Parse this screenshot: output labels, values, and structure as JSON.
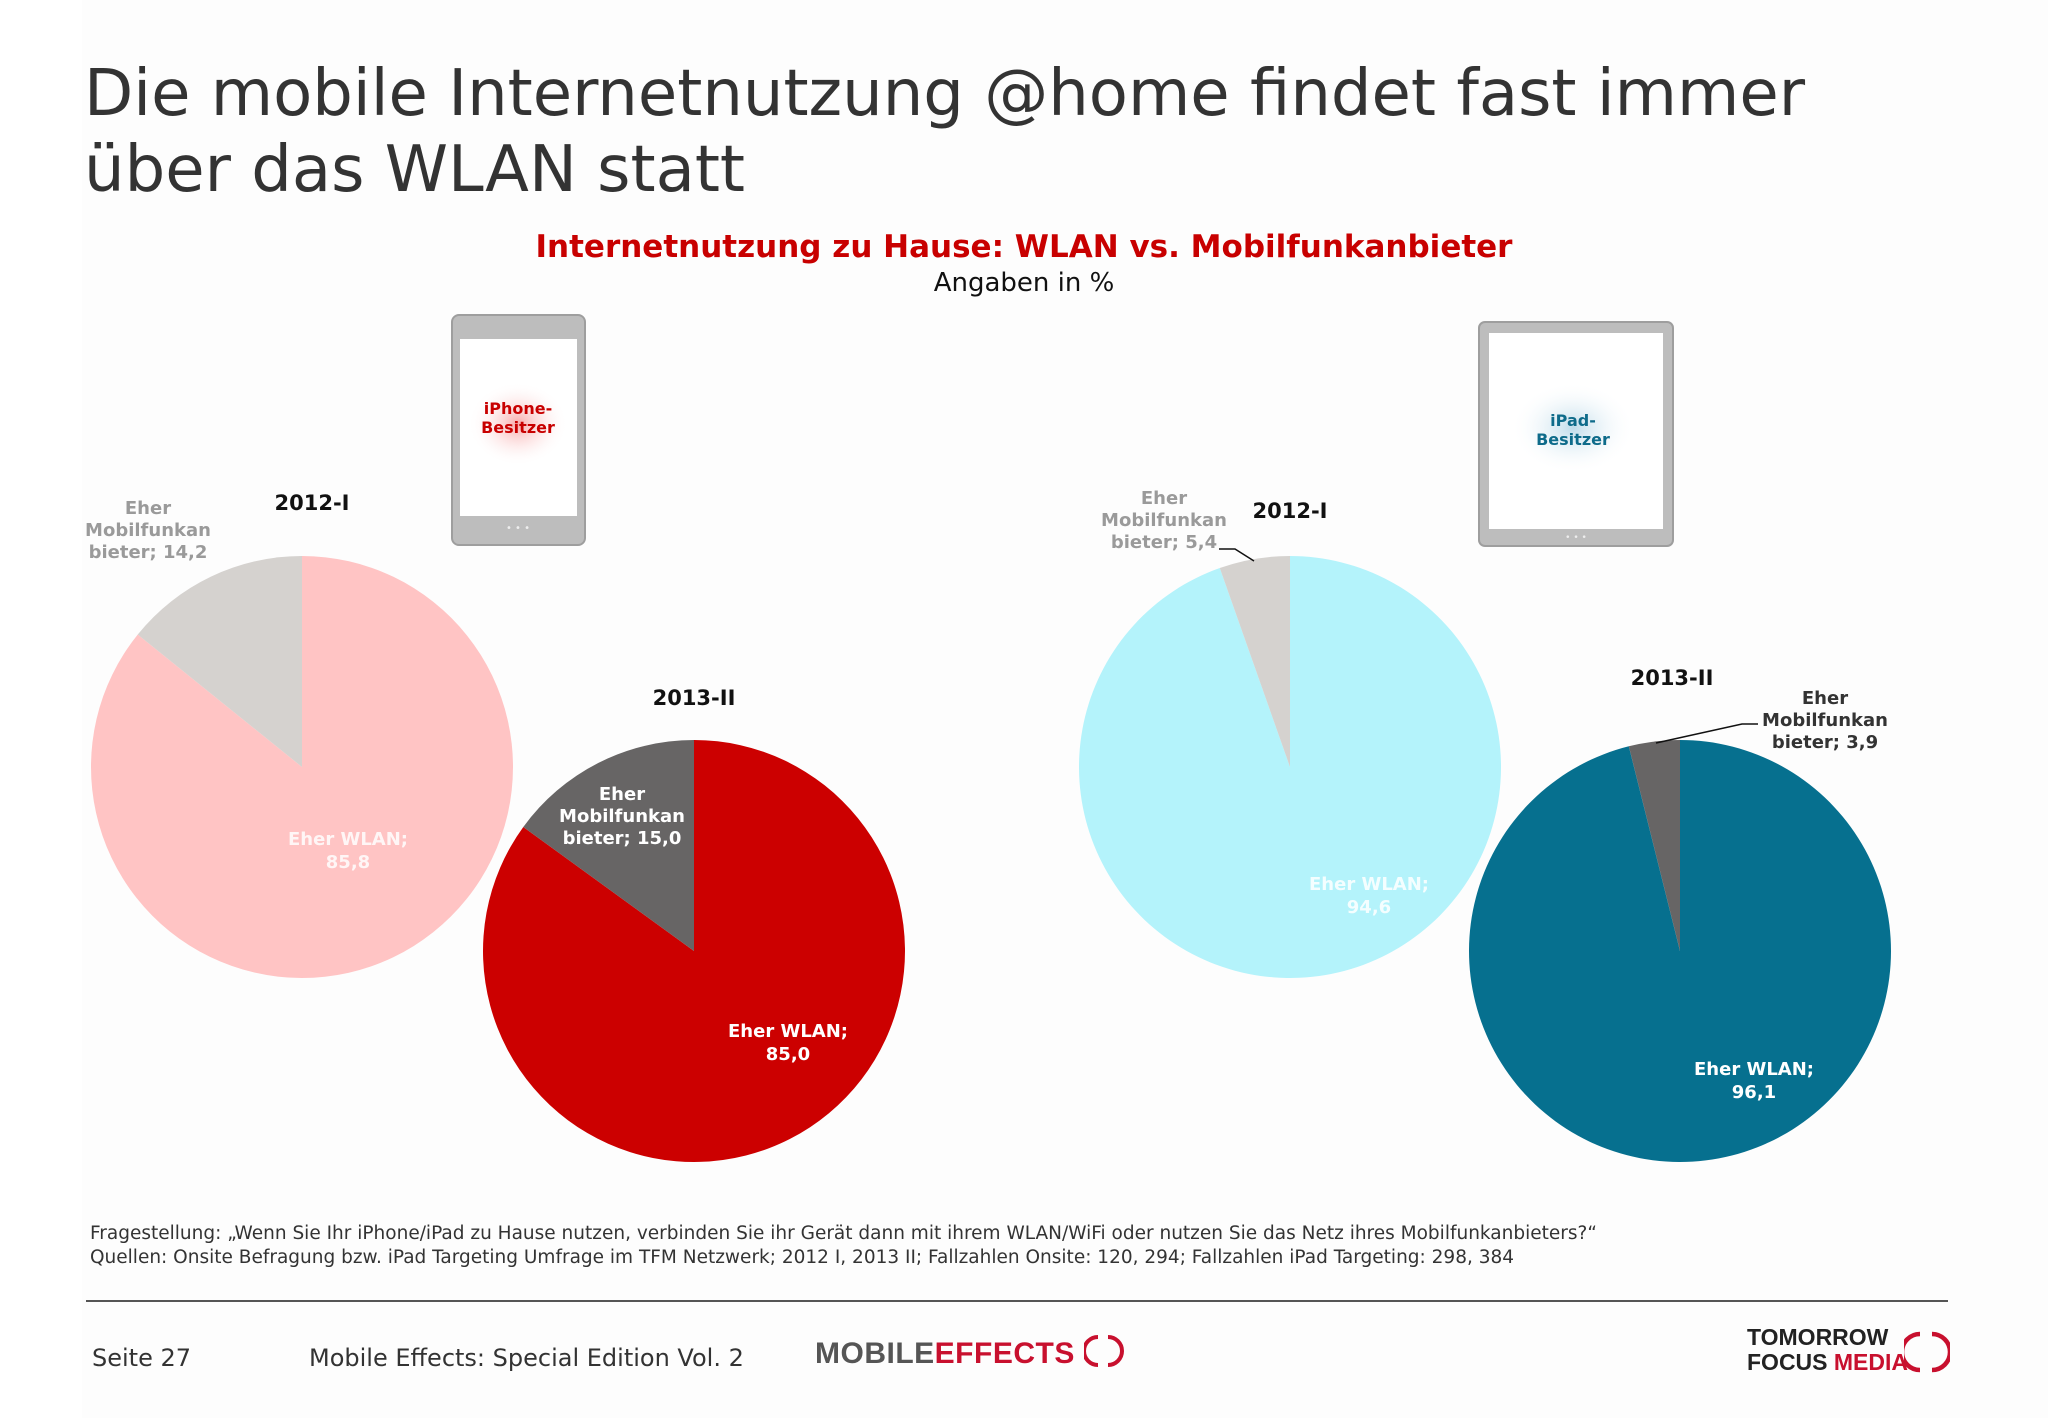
{
  "slide": {
    "title_line1": "Die mobile Internetnutzung @home findet fast immer",
    "title_line2": "über das WLAN statt"
  },
  "chart_header": {
    "title": "Internetnutzung zu Hause: WLAN vs. Mobilfunkanbieter",
    "subtitle": "Angaben in %"
  },
  "devices": {
    "iphone_label": [
      "iPhone-",
      "Besitzer"
    ],
    "ipad_label": [
      "iPad-",
      "Besitzer"
    ]
  },
  "colors": {
    "iphone_2012_wlan": "#ffc4c4",
    "iphone_2012_mobil": "#d5d2cf",
    "iphone_2013_wlan": "#cc0000",
    "iphone_2013_mobil": "#676565",
    "ipad_2012_wlan": "#b4f3fb",
    "ipad_2012_mobil": "#d5d2cf",
    "ipad_2013_wlan": "#06708f",
    "ipad_2013_mobil": "#676565",
    "iphone_label": "#c80000",
    "ipad_label": "#0e6b8a"
  },
  "chart_data": [
    {
      "type": "pie",
      "device": "iPhone-Besitzer",
      "title": "2012-I",
      "slices": [
        {
          "label": [
            "Eher WLAN;",
            "85,8"
          ],
          "value": 85.8
        },
        {
          "label": [
            "Eher",
            "Mobilfunkan",
            "bieter; 14,2"
          ],
          "value": 14.2
        }
      ]
    },
    {
      "type": "pie",
      "device": "iPhone-Besitzer",
      "title": "2013-II",
      "slices": [
        {
          "label": [
            "Eher WLAN;",
            "85,0"
          ],
          "value": 85.0
        },
        {
          "label": [
            "Eher",
            "Mobilfunkan",
            "bieter; 15,0"
          ],
          "value": 15.0
        }
      ]
    },
    {
      "type": "pie",
      "device": "iPad-Besitzer",
      "title": "2012-I",
      "slices": [
        {
          "label": [
            "Eher WLAN;",
            "94,6"
          ],
          "value": 94.6
        },
        {
          "label": [
            "Eher",
            "Mobilfunkan",
            "bieter; 5,4"
          ],
          "value": 5.4
        }
      ]
    },
    {
      "type": "pie",
      "device": "iPad-Besitzer",
      "title": "2013-II",
      "slices": [
        {
          "label": [
            "Eher WLAN;",
            "96,1"
          ],
          "value": 96.1
        },
        {
          "label": [
            "Eher",
            "Mobilfunkan",
            "bieter; 3,9"
          ],
          "value": 3.9
        }
      ]
    }
  ],
  "notes": {
    "question": "Fragestellung: „Wenn Sie Ihr iPhone/iPad zu Hause nutzen, verbinden Sie ihr Gerät dann mit ihrem WLAN/WiFi oder nutzen Sie das Netz ihres Mobilfunkanbieters?“",
    "sources": "Quellen: Onsite Befragung bzw. iPad Targeting Umfrage im TFM Netzwerk; 2012 I, 2013 II; Fallzahlen Onsite: 120, 294; Fallzahlen iPad Targeting: 298, 384"
  },
  "footer": {
    "page": "Seite 27",
    "publication": "Mobile Effects: Special Edition Vol. 2",
    "logo_left_a": "MOBILE",
    "logo_left_b": "EFFECTS",
    "logo_right_1": "TOMORROW",
    "logo_right_2a": "FOCUS",
    "logo_right_2b": "MEDIA"
  }
}
